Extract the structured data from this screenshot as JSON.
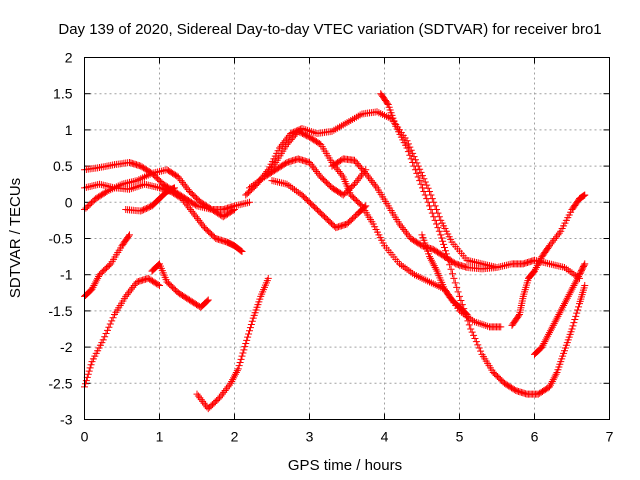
{
  "chart_data": {
    "type": "scatter",
    "title": "Day 139 of 2020, Sidereal Day-to-day VTEC variation (SDTVAR) for receiver bro1",
    "xlabel": "GPS time / hours",
    "ylabel": "SDTVAR / TECUs",
    "xlim": [
      0,
      7
    ],
    "ylim": [
      -3,
      2
    ],
    "xticks": [
      0,
      1,
      2,
      3,
      4,
      5,
      6,
      7
    ],
    "yticks": [
      2,
      1.5,
      1,
      0.5,
      0,
      -0.5,
      -1,
      -1.5,
      -2,
      -2.5,
      -3
    ],
    "xtick_labels": [
      "0",
      "1",
      "2",
      "3",
      "4",
      "5",
      "6",
      "7"
    ],
    "ytick_labels": [
      "2",
      "1.5",
      "1",
      "0.5",
      "0",
      "-0.5",
      "-1",
      "-1.5",
      "-2",
      "-2.5",
      "-3"
    ],
    "grid": true,
    "marker": "+",
    "color": "#ff0000",
    "series": [
      {
        "name": "s1",
        "points": [
          [
            0,
            0.45
          ],
          [
            0.2,
            0.48
          ],
          [
            0.4,
            0.52
          ],
          [
            0.6,
            0.55
          ],
          [
            0.75,
            0.5
          ],
          [
            0.9,
            0.4
          ],
          [
            1.05,
            0.25
          ],
          [
            1.2,
            0.15
          ],
          [
            1.35,
            0.05
          ],
          [
            1.5,
            -0.05
          ],
          [
            1.7,
            -0.1
          ],
          [
            1.85,
            -0.1
          ],
          [
            2.0,
            -0.05
          ],
          [
            2.2,
            0.0
          ]
        ]
      },
      {
        "name": "s2",
        "points": [
          [
            0,
            0.2
          ],
          [
            0.2,
            0.25
          ],
          [
            0.4,
            0.2
          ],
          [
            0.6,
            0.18
          ],
          [
            0.8,
            0.25
          ],
          [
            1.0,
            0.2
          ],
          [
            1.15,
            0.15
          ],
          [
            1.3,
            0.05
          ],
          [
            1.45,
            -0.15
          ],
          [
            1.6,
            -0.35
          ],
          [
            1.75,
            -0.5
          ],
          [
            1.9,
            -0.55
          ],
          [
            2.0,
            -0.6
          ],
          [
            2.1,
            -0.68
          ]
        ]
      },
      {
        "name": "s3",
        "points": [
          [
            0,
            -0.1
          ],
          [
            0.15,
            0.05
          ],
          [
            0.3,
            0.15
          ],
          [
            0.5,
            0.25
          ],
          [
            0.7,
            0.3
          ],
          [
            0.9,
            0.4
          ],
          [
            1.1,
            0.45
          ],
          [
            1.25,
            0.35
          ],
          [
            1.4,
            0.15
          ],
          [
            1.55,
            0.0
          ],
          [
            1.7,
            -0.1
          ],
          [
            1.85,
            -0.2
          ],
          [
            2.0,
            -0.1
          ]
        ]
      },
      {
        "name": "s4",
        "points": [
          [
            0,
            -1.3
          ],
          [
            0.1,
            -1.2
          ],
          [
            0.2,
            -1.0
          ],
          [
            0.35,
            -0.85
          ],
          [
            0.5,
            -0.6
          ],
          [
            0.6,
            -0.45
          ]
        ]
      },
      {
        "name": "s5",
        "points": [
          [
            0,
            -2.55
          ],
          [
            0.1,
            -2.2
          ],
          [
            0.25,
            -1.9
          ],
          [
            0.4,
            -1.55
          ],
          [
            0.55,
            -1.3
          ],
          [
            0.7,
            -1.1
          ],
          [
            0.85,
            -1.05
          ],
          [
            1.0,
            -1.15
          ]
        ]
      },
      {
        "name": "s6",
        "points": [
          [
            0.55,
            -0.1
          ],
          [
            0.75,
            -0.12
          ],
          [
            0.9,
            -0.05
          ],
          [
            1.0,
            0.05
          ],
          [
            1.1,
            0.15
          ],
          [
            1.2,
            0.2
          ]
        ]
      },
      {
        "name": "s7",
        "points": [
          [
            0.9,
            -0.95
          ],
          [
            1.0,
            -0.85
          ],
          [
            1.1,
            -1.1
          ],
          [
            1.25,
            -1.25
          ],
          [
            1.4,
            -1.35
          ],
          [
            1.55,
            -1.45
          ],
          [
            1.65,
            -1.35
          ]
        ]
      },
      {
        "name": "s8",
        "points": [
          [
            1.5,
            -2.65
          ],
          [
            1.65,
            -2.85
          ],
          [
            1.8,
            -2.7
          ],
          [
            1.95,
            -2.5
          ],
          [
            2.05,
            -2.3
          ],
          [
            2.15,
            -1.95
          ],
          [
            2.25,
            -1.6
          ],
          [
            2.35,
            -1.3
          ],
          [
            2.45,
            -1.05
          ]
        ]
      },
      {
        "name": "s9",
        "points": [
          [
            2.2,
            0.2
          ],
          [
            2.4,
            0.35
          ],
          [
            2.55,
            0.45
          ],
          [
            2.7,
            0.55
          ],
          [
            2.85,
            0.6
          ],
          [
            3.0,
            0.55
          ],
          [
            3.15,
            0.35
          ],
          [
            3.3,
            0.2
          ],
          [
            3.45,
            0.1
          ],
          [
            3.6,
            0.25
          ],
          [
            3.75,
            0.45
          ]
        ]
      },
      {
        "name": "s10",
        "points": [
          [
            2.15,
            0.1
          ],
          [
            2.3,
            0.25
          ],
          [
            2.45,
            0.45
          ],
          [
            2.6,
            0.75
          ],
          [
            2.75,
            0.95
          ],
          [
            2.9,
            1.02
          ],
          [
            3.1,
            0.95
          ],
          [
            3.3,
            0.98
          ],
          [
            3.5,
            1.1
          ],
          [
            3.7,
            1.22
          ],
          [
            3.9,
            1.25
          ],
          [
            4.1,
            1.15
          ],
          [
            4.3,
            0.85
          ],
          [
            4.45,
            0.5
          ],
          [
            4.6,
            0.15
          ],
          [
            4.75,
            -0.25
          ],
          [
            4.9,
            -0.55
          ],
          [
            5.1,
            -0.8
          ],
          [
            5.3,
            -0.85
          ],
          [
            5.5,
            -0.9
          ],
          [
            5.7,
            -0.85
          ],
          [
            5.85,
            -0.85
          ],
          [
            6.0,
            -0.8
          ],
          [
            6.2,
            -0.85
          ],
          [
            6.4,
            -0.9
          ],
          [
            6.6,
            -1.05
          ]
        ]
      },
      {
        "name": "s11",
        "points": [
          [
            2.4,
            0.35
          ],
          [
            2.55,
            0.55
          ],
          [
            2.7,
            0.8
          ],
          [
            2.85,
            0.98
          ],
          [
            3.0,
            0.9
          ],
          [
            3.15,
            0.8
          ],
          [
            3.3,
            0.55
          ],
          [
            3.45,
            0.35
          ],
          [
            3.55,
            0.1
          ],
          [
            3.7,
            -0.05
          ],
          [
            3.85,
            -0.3
          ],
          [
            4.0,
            -0.6
          ],
          [
            4.2,
            -0.85
          ],
          [
            4.4,
            -1.0
          ],
          [
            4.6,
            -1.1
          ],
          [
            4.8,
            -1.2
          ],
          [
            5.0,
            -1.5
          ],
          [
            5.2,
            -1.65
          ],
          [
            5.4,
            -1.72
          ],
          [
            5.55,
            -1.72
          ]
        ]
      },
      {
        "name": "s12",
        "points": [
          [
            2.5,
            0.3
          ],
          [
            2.7,
            0.25
          ],
          [
            2.9,
            0.1
          ],
          [
            3.05,
            -0.05
          ],
          [
            3.2,
            -0.2
          ],
          [
            3.35,
            -0.35
          ],
          [
            3.5,
            -0.3
          ],
          [
            3.65,
            -0.15
          ],
          [
            3.75,
            -0.05
          ]
        ]
      },
      {
        "name": "s13",
        "points": [
          [
            3.3,
            0.5
          ],
          [
            3.45,
            0.6
          ],
          [
            3.6,
            0.58
          ],
          [
            3.75,
            0.4
          ],
          [
            3.9,
            0.2
          ],
          [
            4.05,
            -0.05
          ],
          [
            4.2,
            -0.3
          ],
          [
            4.35,
            -0.5
          ],
          [
            4.5,
            -0.6
          ],
          [
            4.65,
            -0.65
          ],
          [
            4.8,
            -0.75
          ],
          [
            4.95,
            -0.85
          ],
          [
            5.1,
            -0.9
          ],
          [
            5.3,
            -0.92
          ],
          [
            5.5,
            -0.9
          ]
        ]
      },
      {
        "name": "s14",
        "points": [
          [
            3.95,
            1.5
          ],
          [
            4.05,
            1.35
          ],
          [
            4.15,
            1.05
          ],
          [
            4.3,
            0.75
          ],
          [
            4.45,
            0.35
          ],
          [
            4.6,
            -0.05
          ],
          [
            4.75,
            -0.45
          ],
          [
            4.85,
            -0.8
          ],
          [
            5.0,
            -1.3
          ],
          [
            5.15,
            -1.75
          ],
          [
            5.3,
            -2.1
          ],
          [
            5.45,
            -2.35
          ],
          [
            5.6,
            -2.5
          ],
          [
            5.75,
            -2.6
          ],
          [
            5.9,
            -2.65
          ],
          [
            6.05,
            -2.65
          ],
          [
            6.2,
            -2.55
          ],
          [
            6.3,
            -2.35
          ],
          [
            6.4,
            -2.05
          ],
          [
            6.5,
            -1.75
          ],
          [
            6.6,
            -1.4
          ],
          [
            6.67,
            -1.15
          ]
        ]
      },
      {
        "name": "s15",
        "points": [
          [
            4.5,
            -0.45
          ],
          [
            4.6,
            -0.75
          ],
          [
            4.7,
            -0.95
          ],
          [
            4.8,
            -1.2
          ],
          [
            4.9,
            -1.35
          ],
          [
            5.0,
            -1.45
          ],
          [
            5.1,
            -1.55
          ]
        ]
      },
      {
        "name": "s16",
        "points": [
          [
            5.7,
            -1.7
          ],
          [
            5.8,
            -1.55
          ],
          [
            5.85,
            -1.3
          ],
          [
            5.92,
            -1.05
          ],
          [
            6.0,
            -0.95
          ],
          [
            6.1,
            -0.75
          ],
          [
            6.2,
            -0.6
          ],
          [
            6.35,
            -0.4
          ],
          [
            6.5,
            -0.1
          ],
          [
            6.6,
            0.05
          ],
          [
            6.67,
            0.1
          ]
        ]
      },
      {
        "name": "s17",
        "points": [
          [
            6.0,
            -2.1
          ],
          [
            6.1,
            -2.0
          ],
          [
            6.2,
            -1.8
          ],
          [
            6.3,
            -1.6
          ],
          [
            6.4,
            -1.4
          ],
          [
            6.5,
            -1.2
          ],
          [
            6.6,
            -1.0
          ],
          [
            6.67,
            -0.85
          ]
        ]
      }
    ]
  }
}
